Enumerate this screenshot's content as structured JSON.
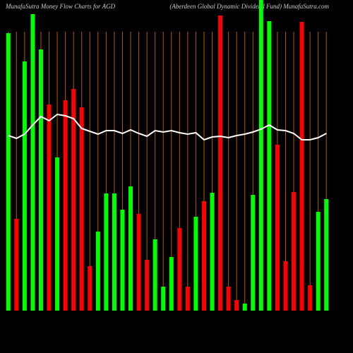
{
  "chart_data": {
    "type": "bar",
    "title": "MunafaSutra  Money Flow  Charts for AGD",
    "subtitle": "(Aberdeen  Global Dynamic Dividend Fund) MunafaSutra.com",
    "categories": [
      null,
      null,
      null,
      null,
      null,
      null,
      null,
      null,
      null,
      null,
      null,
      null,
      null,
      null,
      null,
      null,
      null,
      null,
      null,
      null,
      null,
      null,
      null,
      null,
      null,
      null,
      null,
      null,
      null,
      null,
      null,
      null,
      null,
      null,
      null,
      null,
      null,
      null,
      null,
      null
    ],
    "ylim": [
      0,
      440
    ],
    "series": [
      {
        "type": "bar",
        "values": [
          393,
          130,
          353,
          420,
          370,
          292,
          217,
          298,
          314,
          288,
          63,
          112,
          166,
          166,
          143,
          176,
          137,
          72,
          101,
          34,
          76,
          117,
          34,
          133,
          155,
          167,
          418,
          34,
          15,
          10,
          164,
          440,
          410,
          235,
          70,
          168,
          409,
          36,
          140,
          158
        ],
        "colors": [
          "#00ff00",
          "#ff0000",
          "#00ff00",
          "#00ff00",
          "#00ff00",
          "#ff0000",
          "#00ff00",
          "#ff0000",
          "#ff0000",
          "#ff0000",
          "#ff0000",
          "#00ff00",
          "#00ff00",
          "#00ff00",
          "#00ff00",
          "#00ff00",
          "#ff0000",
          "#ff0000",
          "#00ff00",
          "#00ff00",
          "#00ff00",
          "#ff0000",
          "#ff0000",
          "#00ff00",
          "#ff0000",
          "#00ff00",
          "#ff0000",
          "#ff0000",
          "#ff0000",
          "#00ff00",
          "#00ff00",
          "#00ff00",
          "#00ff00",
          "#ff0000",
          "#ff0000",
          "#ff0000",
          "#ff0000",
          "#ff0000",
          "#00ff00",
          "#00ff00"
        ]
      },
      {
        "type": "line",
        "color": "#ffffff",
        "values": [
          248,
          244,
          250,
          263,
          275,
          269,
          278,
          276,
          272,
          258,
          254,
          250,
          255,
          255,
          251,
          256,
          251,
          247,
          255,
          253,
          255,
          252,
          250,
          252,
          242,
          246,
          247,
          245,
          248,
          250,
          253,
          257,
          263,
          256,
          255,
          251,
          242,
          242,
          245,
          251
        ]
      }
    ],
    "grid_color": "#b35900"
  }
}
